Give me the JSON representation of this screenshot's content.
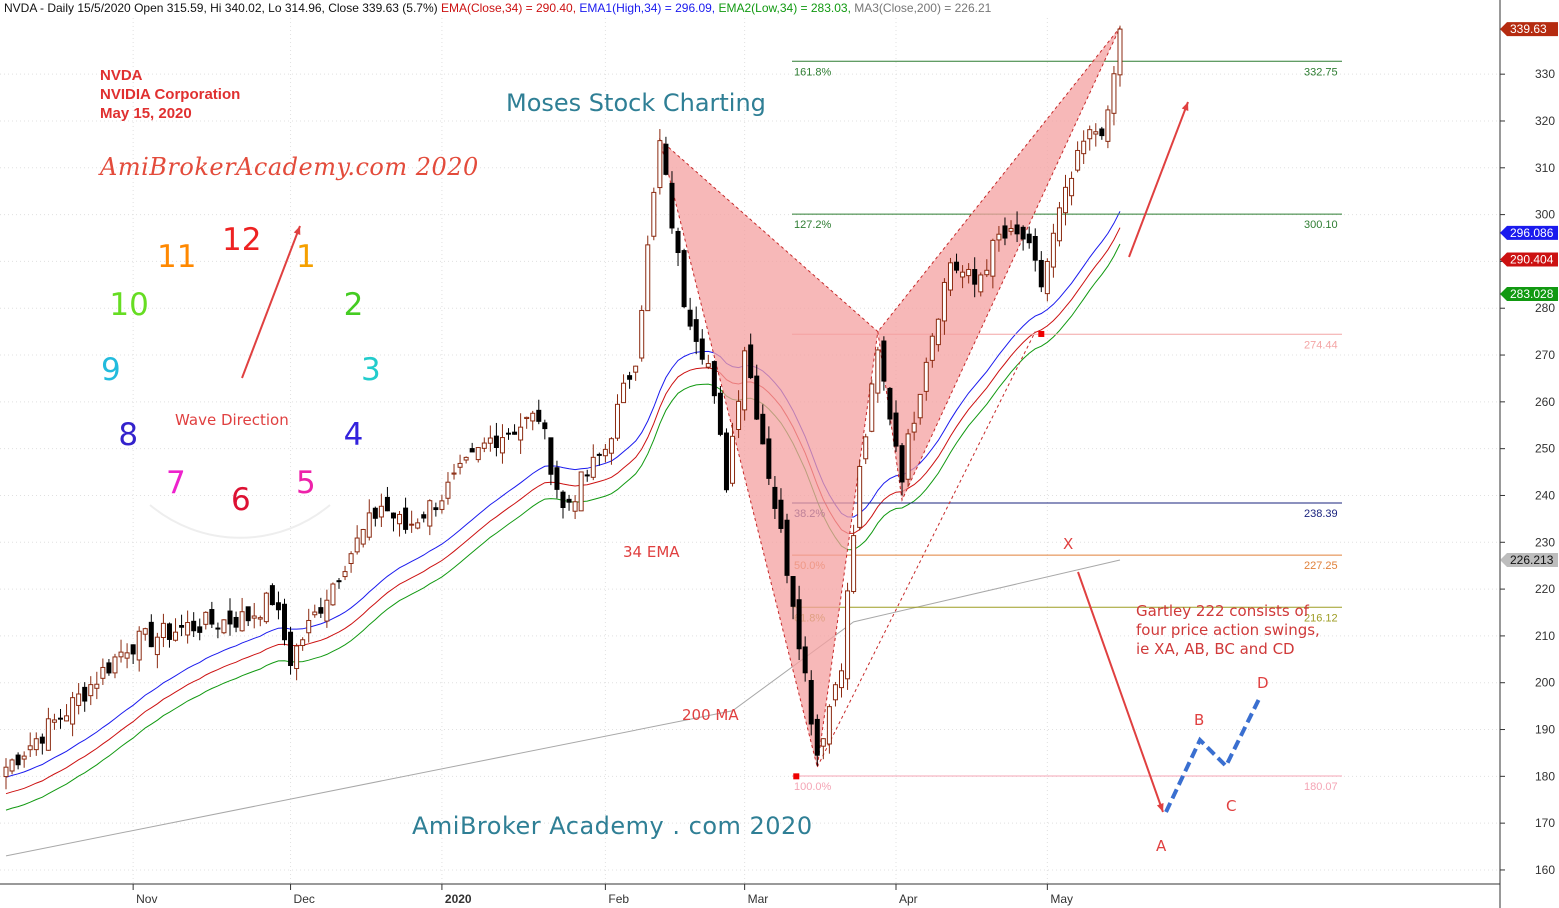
{
  "header": {
    "ticker_line": "NVDA - Daily 15/5/2020 Open 315.59, Hi 340.02, Lo 314.96, Close 339.63 (5.7%)",
    "ema_label": "EMA(Close,34) = 290.40,",
    "ema1_label": "EMA1(High,34) = 296.09,",
    "ema2_label": "EMA2(Low,34) = 283.03,",
    "ma3_label": "MA3(Close,200) = 226.21"
  },
  "annotations": {
    "ticker": "NVDA",
    "company": "NVIDIA Corporation",
    "date": "May 15, 2020",
    "site_italic": "AmiBrokerAcademy.com 2020",
    "moses": "Moses Stock Charting",
    "footer": "AmiBroker Academy . com  2020",
    "ema_text": "34 EMA",
    "ma_text": "200 MA",
    "wave_direction": "Wave Direction",
    "gartley_note": "Gartley 222 consists of four price action swings, ie XA, AB, BC and CD",
    "pattern_labels": {
      "x": "X",
      "a": "A",
      "b": "B",
      "c": "C",
      "d": "D"
    }
  },
  "clock": {
    "numbers": [
      {
        "n": "12",
        "color": "#ee2222"
      },
      {
        "n": "1",
        "color": "#f5a000"
      },
      {
        "n": "2",
        "color": "#44cc22"
      },
      {
        "n": "3",
        "color": "#22cccc"
      },
      {
        "n": "4",
        "color": "#3322dd"
      },
      {
        "n": "5",
        "color": "#ee22aa"
      },
      {
        "n": "6",
        "color": "#dd1133"
      },
      {
        "n": "7",
        "color": "#ee22cc"
      },
      {
        "n": "8",
        "color": "#3322cc"
      },
      {
        "n": "9",
        "color": "#22bbdd"
      },
      {
        "n": "10",
        "color": "#66dd22"
      },
      {
        "n": "11",
        "color": "#ff8800"
      }
    ]
  },
  "colors": {
    "ema": "#cc1111",
    "ema1": "#1a1aee",
    "ema2": "#119911",
    "ma3": "#a8a8a8",
    "pattern_fill": "#f4a0a0",
    "arrow": "#e04040",
    "wave": "#3a6fd0"
  },
  "chart_data": {
    "type": "candlestick",
    "y_range": [
      157,
      342
    ],
    "y_ticks": [
      160,
      170,
      180,
      190,
      200,
      210,
      220,
      230,
      240,
      250,
      260,
      270,
      280,
      290,
      300,
      310,
      320,
      330
    ],
    "x_labels": [
      {
        "label": "Nov",
        "bar": 21
      },
      {
        "label": "Dec",
        "bar": 47
      },
      {
        "label": "2020",
        "bar": 72
      },
      {
        "label": "Feb",
        "bar": 99
      },
      {
        "label": "Mar",
        "bar": 122
      },
      {
        "label": "Apr",
        "bar": 147
      },
      {
        "label": "May",
        "bar": 172
      }
    ],
    "value_badges": [
      {
        "label": "339.63",
        "value": 339.63,
        "bg": "#b52b10"
      },
      {
        "label": "296.086",
        "value": 296.086,
        "bg": "#1a1aee"
      },
      {
        "label": "290.404",
        "value": 290.404,
        "bg": "#cc1111"
      },
      {
        "label": "283.028",
        "value": 283.028,
        "bg": "#119911"
      },
      {
        "label": "226.213",
        "value": 226.213,
        "bg": "#bdbdbd"
      }
    ],
    "fib_levels": [
      {
        "pct": "161.8%",
        "value": 332.75,
        "label": "332.75",
        "color": "#2e7d32"
      },
      {
        "pct": "127.2%",
        "value": 300.1,
        "label": "300.10",
        "color": "#2e7d32"
      },
      {
        "pct": "",
        "value": 274.44,
        "label": "274.44",
        "color": "#f4a5a5"
      },
      {
        "pct": "38.2%",
        "value": 238.39,
        "label": "238.39",
        "color": "#1a237e"
      },
      {
        "pct": "50.0%",
        "value": 227.25,
        "label": "227.25",
        "color": "#e0803a"
      },
      {
        "pct": "61.8%",
        "value": 216.12,
        "label": "216.12",
        "color": "#9e9d24"
      },
      {
        "pct": "100.0%",
        "value": 180.07,
        "label": "180.07",
        "color": "#f4a5b5"
      }
    ],
    "pattern_points": [
      {
        "point": "X",
        "bar": 108,
        "value": 316
      },
      {
        "point": "A",
        "bar": 134,
        "value": 182
      },
      {
        "point": "B",
        "bar": 144,
        "value": 275
      },
      {
        "point": "C",
        "bar": 148,
        "value": 239
      },
      {
        "point": "D",
        "bar": 184,
        "value": 340
      }
    ],
    "price_points": [
      [
        0,
        182
      ],
      [
        10,
        194
      ],
      [
        20,
        208
      ],
      [
        30,
        212
      ],
      [
        40,
        214
      ],
      [
        44,
        218
      ],
      [
        47,
        205
      ],
      [
        56,
        226
      ],
      [
        62,
        238
      ],
      [
        66,
        233
      ],
      [
        72,
        240
      ],
      [
        80,
        252
      ],
      [
        88,
        257
      ],
      [
        92,
        237
      ],
      [
        99,
        250
      ],
      [
        104,
        270
      ],
      [
        108,
        315
      ],
      [
        112,
        282
      ],
      [
        116,
        268
      ],
      [
        119,
        243
      ],
      [
        122,
        272
      ],
      [
        126,
        245
      ],
      [
        130,
        218
      ],
      [
        134,
        185
      ],
      [
        138,
        205
      ],
      [
        141,
        245
      ],
      [
        144,
        270
      ],
      [
        148,
        245
      ],
      [
        152,
        270
      ],
      [
        156,
        290
      ],
      [
        160,
        285
      ],
      [
        164,
        295
      ],
      [
        168,
        295
      ],
      [
        171,
        285
      ],
      [
        174,
        300
      ],
      [
        178,
        315
      ],
      [
        180,
        318
      ],
      [
        182,
        320
      ],
      [
        184,
        339.63
      ]
    ],
    "ma200_points": [
      [
        0,
        163
      ],
      [
        120,
        194
      ],
      [
        140,
        213
      ],
      [
        184,
        226.21
      ]
    ]
  }
}
